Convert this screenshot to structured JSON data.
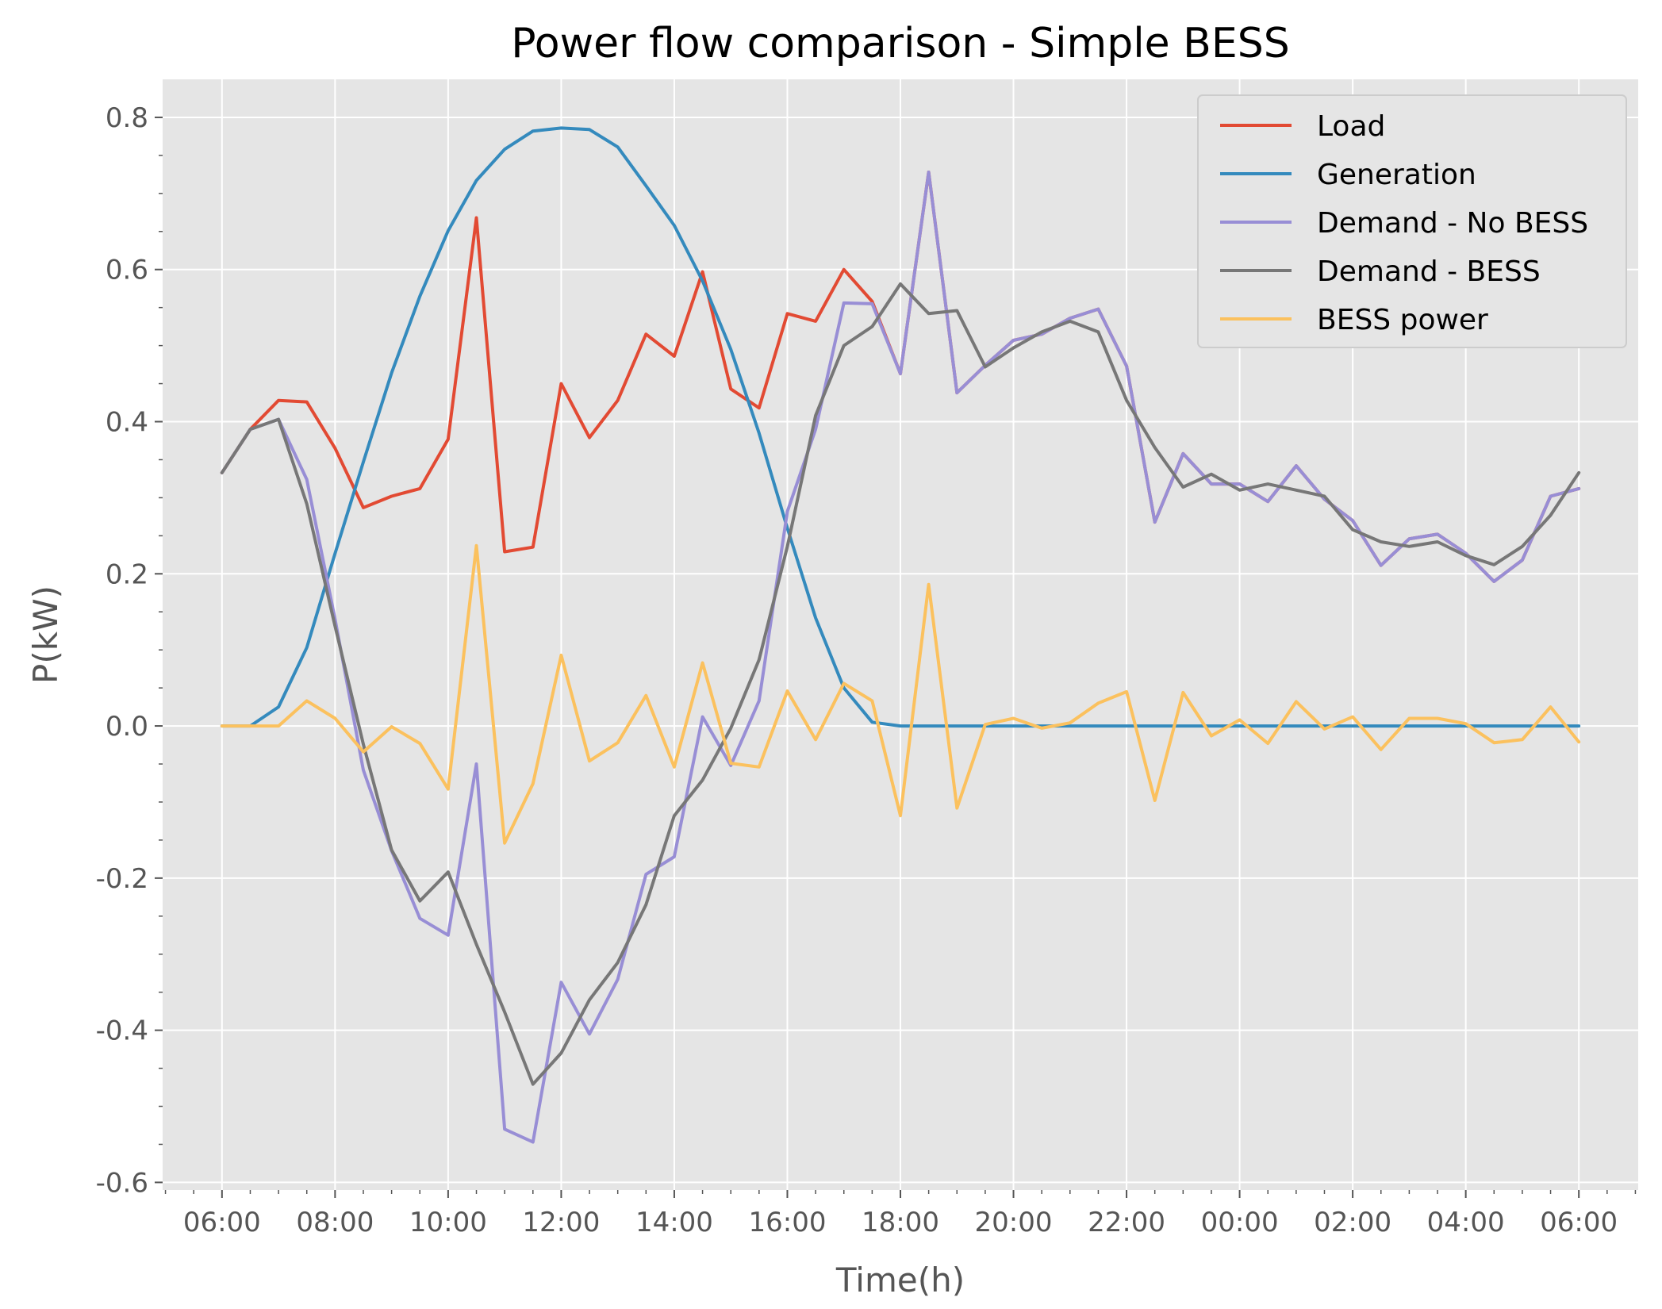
{
  "chart_data": {
    "type": "line",
    "title": "Power flow comparison - Simple BESS",
    "xlabel": "Time(h)",
    "ylabel": "P(kW)",
    "x_tick_labels": [
      "06:00",
      "08:00",
      "10:00",
      "12:00",
      "14:00",
      "16:00",
      "18:00",
      "20:00",
      "22:00",
      "00:00",
      "02:00",
      "04:00",
      "06:00"
    ],
    "y_ticks": [
      -0.6,
      -0.4,
      -0.2,
      0.0,
      0.2,
      0.4,
      0.6,
      0.8
    ],
    "y_tick_labels": [
      "-0.6",
      "-0.4",
      "-0.2",
      "0.0",
      "0.2",
      "0.4",
      "0.6",
      "0.8"
    ],
    "x_hours_from_start": [
      0,
      0.5,
      1,
      1.5,
      2,
      2.5,
      3,
      3.5,
      4,
      4.5,
      5,
      5.5,
      6,
      6.5,
      7,
      7.5,
      8,
      8.5,
      9,
      9.5,
      10,
      10.5,
      11,
      11.5,
      12,
      12.5,
      13,
      13.5,
      14,
      14.5,
      15,
      15.5,
      16,
      16.5,
      17,
      17.5,
      18,
      18.5,
      19,
      19.5,
      20,
      20.5,
      21,
      21.5,
      22,
      22.5,
      23,
      23.5,
      24
    ],
    "xlim_hours": [
      -1.05,
      25.05
    ],
    "ylim": [
      -0.61,
      0.85
    ],
    "grid": true,
    "legend_position": "top-right",
    "series": [
      {
        "name": "Load",
        "color": "#e24a33",
        "values": [
          0.333,
          0.39,
          0.428,
          0.426,
          0.365,
          0.287,
          0.302,
          0.312,
          0.377,
          0.668,
          0.229,
          0.235,
          0.45,
          0.379,
          0.428,
          0.515,
          0.486,
          0.597,
          0.443,
          0.418,
          0.542,
          0.532,
          0.6,
          0.558,
          0.463,
          0.728,
          0.438,
          0.474,
          0.507,
          0.515,
          0.536,
          0.548,
          0.473,
          0.268,
          0.358,
          0.318,
          0.318,
          0.295,
          0.342,
          0.298,
          0.27,
          0.211,
          0.246,
          0.252,
          0.227,
          0.19,
          0.218,
          0.302,
          0.312
        ]
      },
      {
        "name": "Generation",
        "color": "#348abd",
        "values": [
          0,
          0,
          0.025,
          0.103,
          0.227,
          0.347,
          0.464,
          0.565,
          0.651,
          0.717,
          0.758,
          0.782,
          0.786,
          0.784,
          0.761,
          0.71,
          0.658,
          0.585,
          0.495,
          0.385,
          0.26,
          0.142,
          0.05,
          0.005,
          0,
          0,
          0,
          0,
          0,
          0,
          0,
          0,
          0,
          0,
          0,
          0,
          0,
          0,
          0,
          0,
          0,
          0,
          0,
          0,
          0,
          0,
          0,
          0,
          0
        ]
      },
      {
        "name": "Demand - No BESS",
        "color": "#988ed5",
        "values": [
          0.333,
          0.39,
          0.403,
          0.324,
          0.14,
          -0.058,
          -0.164,
          -0.253,
          -0.275,
          -0.05,
          -0.53,
          -0.547,
          -0.337,
          -0.405,
          -0.333,
          -0.195,
          -0.172,
          0.012,
          -0.052,
          0.033,
          0.282,
          0.39,
          0.556,
          0.555,
          0.463,
          0.728,
          0.438,
          0.474,
          0.507,
          0.515,
          0.536,
          0.548,
          0.473,
          0.268,
          0.358,
          0.318,
          0.318,
          0.295,
          0.342,
          0.298,
          0.27,
          0.211,
          0.246,
          0.252,
          0.227,
          0.19,
          0.218,
          0.302,
          0.312
        ]
      },
      {
        "name": "Demand - BESS",
        "color": "#777777",
        "values": [
          0.333,
          0.39,
          0.403,
          0.292,
          0.131,
          -0.024,
          -0.163,
          -0.23,
          -0.192,
          -0.287,
          -0.376,
          -0.471,
          -0.43,
          -0.36,
          -0.311,
          -0.235,
          -0.118,
          -0.071,
          -0.003,
          0.087,
          0.236,
          0.408,
          0.5,
          0.525,
          0.581,
          0.542,
          0.546,
          0.472,
          0.497,
          0.518,
          0.532,
          0.518,
          0.428,
          0.366,
          0.314,
          0.331,
          0.31,
          0.318,
          0.31,
          0.302,
          0.258,
          0.242,
          0.236,
          0.242,
          0.224,
          0.212,
          0.236,
          0.277,
          0.333
        ]
      },
      {
        "name": "BESS power",
        "color": "#fbc15e",
        "values": [
          0,
          0,
          0,
          0.033,
          0.01,
          -0.034,
          -0.001,
          -0.023,
          -0.083,
          0.237,
          -0.154,
          -0.076,
          0.093,
          -0.046,
          -0.022,
          0.04,
          -0.054,
          0.083,
          -0.049,
          -0.054,
          0.046,
          -0.018,
          0.056,
          0.033,
          -0.118,
          0.186,
          -0.108,
          0.002,
          0.01,
          -0.003,
          0.004,
          0.03,
          0.045,
          -0.098,
          0.044,
          -0.013,
          0.008,
          -0.023,
          0.032,
          -0.004,
          0.012,
          -0.031,
          0.01,
          0.01,
          0.003,
          -0.022,
          -0.018,
          0.025,
          -0.021
        ]
      }
    ]
  }
}
